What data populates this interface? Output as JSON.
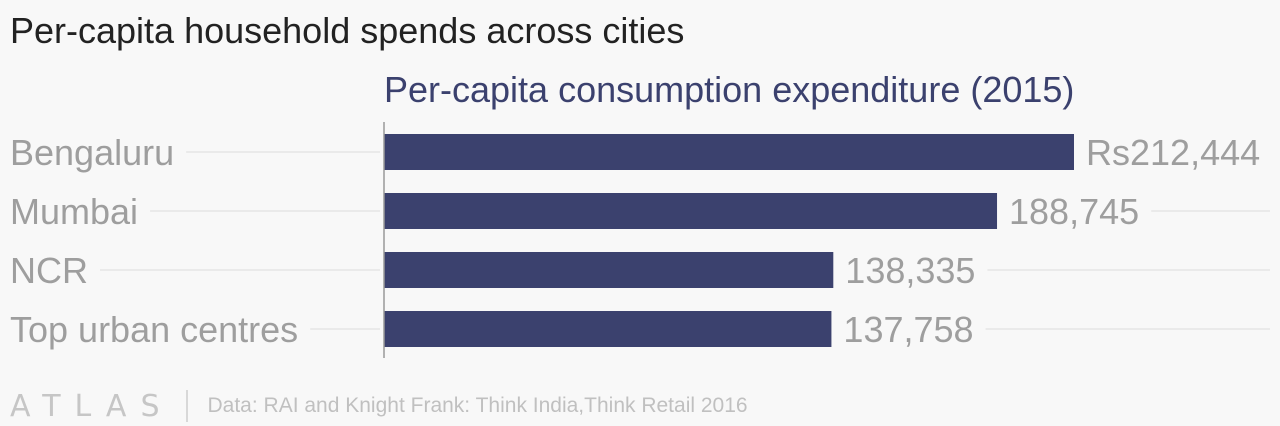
{
  "title": "Per-capita household spends across cities",
  "footer": {
    "brand": "ATLAS",
    "source": "Data: RAI and Knight Frank: Think India,Think Retail 2016"
  },
  "colors": {
    "bar": "#3b416e",
    "label": "#9e9e9e",
    "subtitle": "#3b416e",
    "title": "#222222",
    "gridline": "#e6e6e6",
    "axis": "#999999"
  },
  "chart_data": {
    "type": "bar",
    "orientation": "horizontal",
    "subtitle": "Per-capita consumption expenditure (2015)",
    "categories": [
      "Bengaluru",
      "Mumbai",
      "NCR",
      "Top urban centres"
    ],
    "values": [
      212444,
      188745,
      138335,
      137758
    ],
    "value_labels": [
      "Rs212,444",
      "188,745",
      "138,335",
      "137,758"
    ],
    "xlim": [
      0,
      212444
    ]
  }
}
